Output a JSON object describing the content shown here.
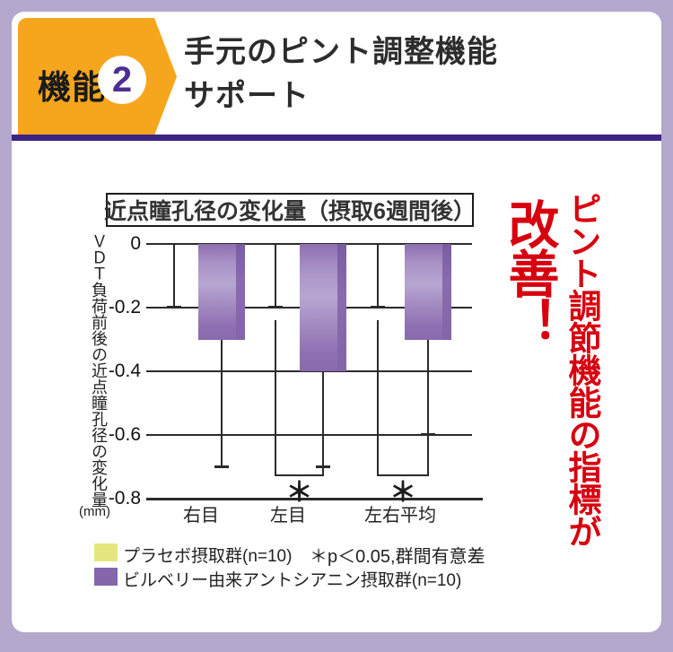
{
  "frame": {
    "border_color": "#b4a8cd",
    "divider_color": "#3e2486",
    "background": "#ffffff"
  },
  "header": {
    "badge_label": "機能",
    "badge_number": "2",
    "badge_color": "#f6a61d",
    "badge_number_color": "#4b2f91",
    "title_line1": "手元のピント調整機能",
    "title_line2": "サポート"
  },
  "chart": {
    "title": "近点瞳孔径の変化量（摂取6週間後）",
    "y_axis_label": "ＶＤＴ負荷前後の近点瞳孔径の変化量",
    "y_axis_unit": "(mm)"
  },
  "legend": {
    "items": [
      {
        "label": "プラセボ摂取群(n=10)",
        "color": "#e6e67f"
      },
      {
        "label": "ビルベリー由来アントシアニン摂取群(n=10)",
        "color": "#8466ad"
      }
    ],
    "note": "＊p＜0.05,群間有意差"
  },
  "callout": {
    "lead": "ピント調節機能の指標が",
    "emphasis": "改善！",
    "color": "#d7000f"
  },
  "chart_data": {
    "type": "bar",
    "title": "近点瞳孔径の変化量（摂取6週間後）",
    "categories": [
      "右目",
      "左目",
      "左右平均"
    ],
    "series": [
      {
        "name": "プラセボ摂取群(n=10)",
        "values": [
          0,
          0,
          0
        ],
        "error_bar_ends": [
          -0.2,
          -0.2,
          -0.2
        ],
        "color": "#e6e67f"
      },
      {
        "name": "ビルベリー由来アントシアニン摂取群(n=10)",
        "values": [
          -0.3,
          -0.4,
          -0.3
        ],
        "error_bar_ends": [
          -0.7,
          -0.7,
          -0.6
        ],
        "color": "#9b82bd"
      }
    ],
    "xlabel": "",
    "ylabel": "ＶＤＴ負荷前後の近点瞳孔径の変化量(mm)",
    "ylim": [
      -0.8,
      0
    ],
    "yticks": [
      "0",
      "-0.2",
      "-0.4",
      "-0.6",
      "-0.8"
    ],
    "grid": "horizontal",
    "legend_position": "bottom-left",
    "significance": [
      {
        "category_index": 1,
        "label": "＊",
        "between": [
          "プラセボ摂取群",
          "ビルベリー由来アントシアニン摂取群"
        ]
      },
      {
        "category_index": 2,
        "label": "＊",
        "between": [
          "プラセボ摂取群",
          "ビルベリー由来アントシアニン摂取群"
        ]
      }
    ],
    "note": "＊p＜0.05,群間有意差"
  }
}
